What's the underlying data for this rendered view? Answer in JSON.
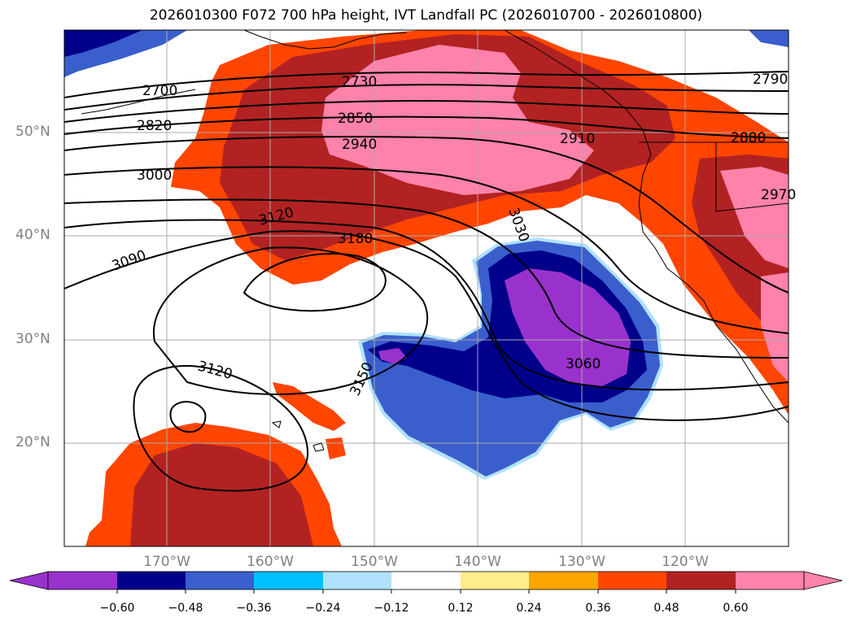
{
  "title": "2026010300 F072 700 hPa height, IVT Landfall PC (2026010700 - 2026010800)",
  "map": {
    "lat_labels": [
      "50°N",
      "40°N",
      "30°N",
      "20°N"
    ],
    "lon_labels": [
      "170°W",
      "160°W",
      "150°W",
      "140°W",
      "130°W",
      "120°W"
    ],
    "contour_labels": [
      "2700",
      "2730",
      "2790",
      "2820",
      "2850",
      "2880",
      "2910",
      "2940",
      "2970",
      "3000",
      "3030",
      "3060",
      "3090",
      "3120",
      "3120",
      "3150",
      "3180"
    ]
  },
  "colorbar": {
    "ticks": [
      "−0.60",
      "−0.48",
      "−0.36",
      "−0.24",
      "−0.12",
      "0.12",
      "0.24",
      "0.36",
      "0.48",
      "0.60"
    ],
    "colors": [
      "#9932cc",
      "#00008b",
      "#3a5fcd",
      "#00bfff",
      "#b0e2ff",
      "#ffffff",
      "#ffec8b",
      "#ffa500",
      "#ff4500",
      "#b22222",
      "#ff82ab",
      "#ff82ab"
    ]
  }
}
